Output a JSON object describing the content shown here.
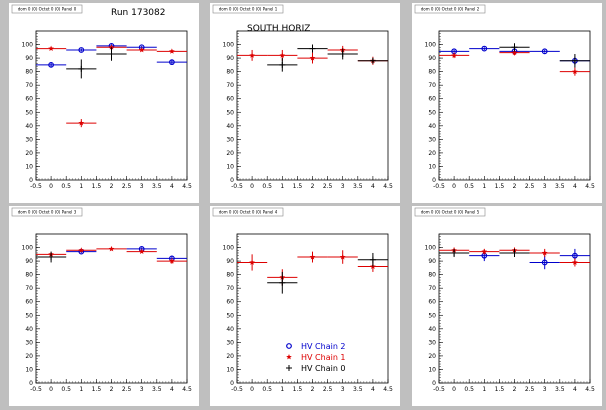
{
  "canvas_title": "Run 173082",
  "colors": {
    "chain2": "#0000cc",
    "chain1": "#dd0000",
    "chain0": "#000000"
  },
  "chart_data": [
    {
      "type": "scatter",
      "title": "dom 0 (0) Octet 0 (0) Panel 0",
      "xlim": [
        -0.5,
        4.5
      ],
      "ylim": [
        0,
        110
      ],
      "xticks": [
        "-0.5",
        "0",
        "0.5",
        "1",
        "1.5",
        "2",
        "2.5",
        "3",
        "3.5",
        "4",
        "4.5"
      ],
      "yticks": [
        "0",
        "10",
        "20",
        "30",
        "40",
        "50",
        "60",
        "70",
        "80",
        "90",
        "100"
      ],
      "series": [
        {
          "name": "HV Chain 2",
          "points": [
            {
              "x": 0,
              "y": 85,
              "ey": 2
            },
            {
              "x": 1,
              "y": 96,
              "ey": 1
            },
            {
              "x": 2,
              "y": 99,
              "ey": 1
            },
            {
              "x": 3,
              "y": 98,
              "ey": 1
            },
            {
              "x": 4,
              "y": 87,
              "ey": 2
            }
          ]
        },
        {
          "name": "HV Chain 1",
          "points": [
            {
              "x": 0,
              "y": 97,
              "ey": 1
            },
            {
              "x": 1,
              "y": 42,
              "ey": 3
            },
            {
              "x": 2,
              "y": 98,
              "ey": 1
            },
            {
              "x": 3,
              "y": 96,
              "ey": 1
            },
            {
              "x": 4,
              "y": 95,
              "ey": 1
            }
          ]
        },
        {
          "name": "HV Chain 0",
          "points": [
            {
              "x": 1,
              "y": 82,
              "ey": 7
            },
            {
              "x": 2,
              "y": 93,
              "ey": 5
            }
          ]
        }
      ]
    },
    {
      "type": "scatter",
      "title": "dom 0 (0) Octet 0 (0) Panel 1",
      "annotation": "SOUTH HORIZ",
      "xlim": [
        -0.5,
        4.5
      ],
      "ylim": [
        0,
        110
      ],
      "xticks": [
        "-0.5",
        "0",
        "0.5",
        "1",
        "1.5",
        "2",
        "2.5",
        "3",
        "3.5",
        "4",
        "4.5"
      ],
      "yticks": [
        "0",
        "10",
        "20",
        "30",
        "40",
        "50",
        "60",
        "70",
        "80",
        "90",
        "100"
      ],
      "series": [
        {
          "name": "HV Chain 2",
          "points": []
        },
        {
          "name": "HV Chain 1",
          "points": [
            {
              "x": 0,
              "y": 92,
              "ey": 4
            },
            {
              "x": 1,
              "y": 92,
              "ey": 4
            },
            {
              "x": 2,
              "y": 90,
              "ey": 4
            },
            {
              "x": 3,
              "y": 96,
              "ey": 3
            },
            {
              "x": 4,
              "y": 88,
              "ey": 3
            }
          ]
        },
        {
          "name": "HV Chain 0",
          "points": [
            {
              "x": 1,
              "y": 85,
              "ey": 5
            },
            {
              "x": 2,
              "y": 97,
              "ey": 3
            },
            {
              "x": 3,
              "y": 93,
              "ey": 4
            },
            {
              "x": 4,
              "y": 88,
              "ey": 2
            }
          ]
        }
      ]
    },
    {
      "type": "scatter",
      "title": "dom 0 (0) Octet 0 (0) Panel 2",
      "xlim": [
        -0.5,
        4.5
      ],
      "ylim": [
        0,
        110
      ],
      "xticks": [
        "-0.5",
        "0",
        "0.5",
        "1",
        "1.5",
        "2",
        "2.5",
        "3",
        "3.5",
        "4",
        "4.5"
      ],
      "yticks": [
        "0",
        "10",
        "20",
        "30",
        "40",
        "50",
        "60",
        "70",
        "80",
        "90",
        "100"
      ],
      "series": [
        {
          "name": "HV Chain 2",
          "points": [
            {
              "x": 0,
              "y": 95,
              "ey": 1
            },
            {
              "x": 1,
              "y": 97,
              "ey": 1
            },
            {
              "x": 2,
              "y": 95,
              "ey": 1
            },
            {
              "x": 3,
              "y": 95,
              "ey": 1
            },
            {
              "x": 4,
              "y": 88,
              "ey": 3
            }
          ]
        },
        {
          "name": "HV Chain 1",
          "points": [
            {
              "x": 0,
              "y": 92,
              "ey": 2
            },
            {
              "x": 2,
              "y": 94,
              "ey": 2
            },
            {
              "x": 4,
              "y": 80,
              "ey": 3
            }
          ]
        },
        {
          "name": "HV Chain 0",
          "points": [
            {
              "x": 2,
              "y": 98,
              "ey": 3
            },
            {
              "x": 4,
              "y": 88,
              "ey": 5
            }
          ]
        }
      ]
    },
    {
      "type": "scatter",
      "title": "dom 0 (0) Octet 0 (0) Panel 3",
      "xlim": [
        -0.5,
        4.5
      ],
      "ylim": [
        0,
        110
      ],
      "xticks": [
        "-0.5",
        "0",
        "0.5",
        "1",
        "1.5",
        "2",
        "2.5",
        "3",
        "3.5",
        "4",
        "4.5"
      ],
      "yticks": [
        "0",
        "10",
        "20",
        "30",
        "40",
        "50",
        "60",
        "70",
        "80",
        "90",
        "100"
      ],
      "series": [
        {
          "name": "HV Chain 2",
          "points": [
            {
              "x": 1,
              "y": 97,
              "ey": 1
            },
            {
              "x": 3,
              "y": 99,
              "ey": 1
            },
            {
              "x": 4,
              "y": 92,
              "ey": 2
            }
          ]
        },
        {
          "name": "HV Chain 1",
          "points": [
            {
              "x": 0,
              "y": 95,
              "ey": 1
            },
            {
              "x": 1,
              "y": 98,
              "ey": 1
            },
            {
              "x": 2,
              "y": 99,
              "ey": 1
            },
            {
              "x": 3,
              "y": 97,
              "ey": 1
            },
            {
              "x": 4,
              "y": 90,
              "ey": 2
            }
          ]
        },
        {
          "name": "HV Chain 0",
          "points": [
            {
              "x": 0,
              "y": 93,
              "ey": 4
            }
          ]
        }
      ]
    },
    {
      "type": "scatter",
      "title": "dom 0 (0) Octet 0 (0) Panel 4",
      "xlim": [
        -0.5,
        4.5
      ],
      "ylim": [
        0,
        110
      ],
      "xticks": [
        "-0.5",
        "0",
        "0.5",
        "1",
        "1.5",
        "2",
        "2.5",
        "3",
        "3.5",
        "4",
        "4.5"
      ],
      "yticks": [
        "0",
        "10",
        "20",
        "30",
        "40",
        "50",
        "60",
        "70",
        "80",
        "90",
        "100"
      ],
      "legend": {
        "position": "bottom-left",
        "entries": [
          "HV Chain 2",
          "HV Chain 1",
          "HV Chain 0"
        ]
      },
      "series": [
        {
          "name": "HV Chain 2",
          "points": []
        },
        {
          "name": "HV Chain 1",
          "points": [
            {
              "x": 0,
              "y": 89,
              "ey": 6
            },
            {
              "x": 1,
              "y": 78,
              "ey": 6
            },
            {
              "x": 2,
              "y": 93,
              "ey": 4
            },
            {
              "x": 3,
              "y": 93,
              "ey": 5
            },
            {
              "x": 4,
              "y": 86,
              "ey": 4
            }
          ]
        },
        {
          "name": "HV Chain 0",
          "points": [
            {
              "x": 1,
              "y": 74,
              "ey": 8
            },
            {
              "x": 4,
              "y": 91,
              "ey": 5
            }
          ]
        }
      ]
    },
    {
      "type": "scatter",
      "title": "dom 0 (0) Octet 0 (0) Panel 5",
      "xlim": [
        -0.5,
        4.5
      ],
      "ylim": [
        0,
        110
      ],
      "xticks": [
        "-0.5",
        "0",
        "0.5",
        "1",
        "1.5",
        "2",
        "2.5",
        "3",
        "3.5",
        "4",
        "4.5"
      ],
      "yticks": [
        "0",
        "10",
        "20",
        "30",
        "40",
        "50",
        "60",
        "70",
        "80",
        "90",
        "100"
      ],
      "series": [
        {
          "name": "HV Chain 2",
          "points": [
            {
              "x": 1,
              "y": 94,
              "ey": 4
            },
            {
              "x": 3,
              "y": 89,
              "ey": 5
            },
            {
              "x": 4,
              "y": 94,
              "ey": 5
            }
          ]
        },
        {
          "name": "HV Chain 1",
          "points": [
            {
              "x": 0,
              "y": 98,
              "ey": 2
            },
            {
              "x": 1,
              "y": 97,
              "ey": 2
            },
            {
              "x": 2,
              "y": 98,
              "ey": 2
            },
            {
              "x": 3,
              "y": 96,
              "ey": 3
            },
            {
              "x": 4,
              "y": 89,
              "ey": 3
            }
          ]
        },
        {
          "name": "HV Chain 0",
          "points": [
            {
              "x": 0,
              "y": 96,
              "ey": 3
            },
            {
              "x": 2,
              "y": 96,
              "ey": 3
            }
          ]
        }
      ]
    }
  ]
}
